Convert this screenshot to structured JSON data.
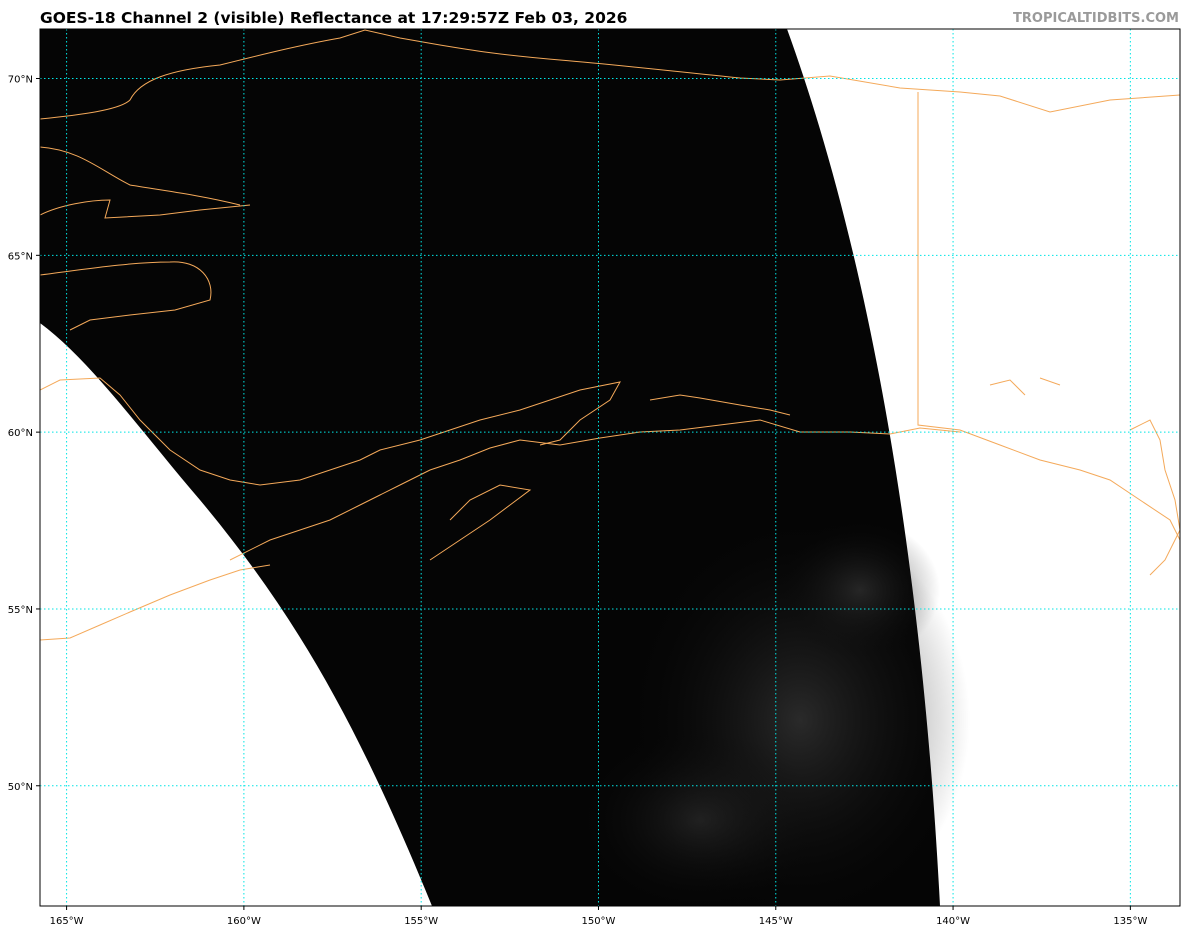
{
  "title": "GOES-18 Channel 2 (visible) Reflectance at 17:29:57Z Feb 03, 2026",
  "credit": "TROPICALTIDBITS.COM",
  "map": {
    "projection": "satellite imagery, lat/lon grid",
    "lon_range": [
      -165.75,
      -133.6
    ],
    "lat_range": [
      46.6,
      71.4
    ],
    "lon_ticks": [
      {
        "value": -165,
        "label": "165°W"
      },
      {
        "value": -160,
        "label": "160°W"
      },
      {
        "value": -155,
        "label": "155°W"
      },
      {
        "value": -150,
        "label": "150°W"
      },
      {
        "value": -145,
        "label": "145°W"
      },
      {
        "value": -140,
        "label": "140°W"
      },
      {
        "value": -135,
        "label": "135°W"
      }
    ],
    "lat_ticks": [
      {
        "value": 70,
        "label": "70°N"
      },
      {
        "value": 65,
        "label": "65°N"
      },
      {
        "value": 60,
        "label": "60°N"
      },
      {
        "value": 55,
        "label": "55°N"
      },
      {
        "value": 50,
        "label": "50°N"
      }
    ],
    "colors": {
      "gridlines": "#00e5e5",
      "coastlines": "#f4a95a",
      "imagery_background": "#050505",
      "no_data": "#ffffff"
    }
  }
}
